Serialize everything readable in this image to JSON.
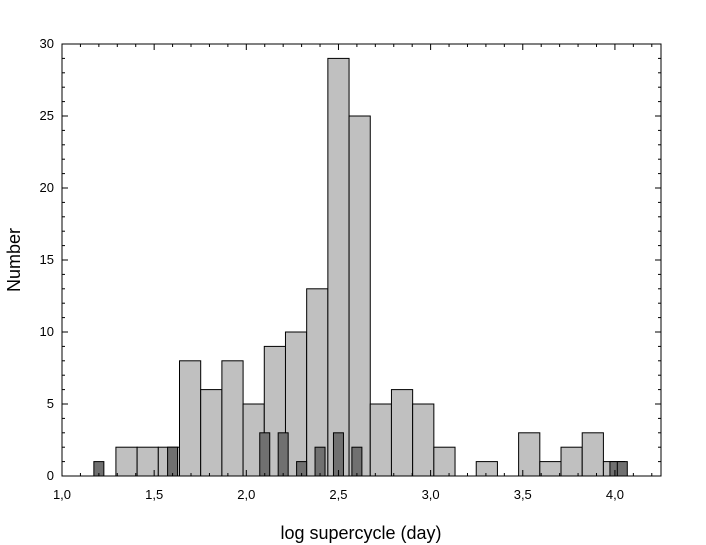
{
  "chart_data": {
    "type": "bar",
    "xlabel": "log supercycle (day)",
    "ylabel": "Number",
    "xlim": [
      1.0,
      4.25
    ],
    "ylim": [
      0,
      30
    ],
    "x_ticks": [
      1.0,
      1.5,
      2.0,
      2.5,
      3.0,
      3.5,
      4.0
    ],
    "x_tick_labels": [
      "1,0",
      "1,5",
      "2,0",
      "2,5",
      "3,0",
      "3,5",
      "4,0"
    ],
    "y_ticks": [
      0,
      5,
      10,
      15,
      20,
      25,
      30
    ],
    "y_tick_labels": [
      "0",
      "5",
      "10",
      "15",
      "20",
      "25",
      "30"
    ],
    "grid": false,
    "bin_width": 0.115,
    "series": [
      {
        "color": "#c0c0c0",
        "x": [
          1.35,
          1.465,
          1.58,
          1.695,
          1.81,
          1.925,
          2.04,
          2.155,
          2.27,
          2.385,
          2.5,
          2.615,
          2.73,
          2.845,
          2.96,
          3.075,
          3.305,
          3.535,
          3.65,
          3.765,
          3.88,
          3.995
        ],
        "values": [
          2,
          2,
          2,
          8,
          6,
          8,
          5,
          9,
          10,
          13,
          29,
          25,
          5,
          6,
          5,
          2,
          1,
          3,
          1,
          2,
          3,
          1
        ]
      },
      {
        "color": "#707070",
        "x": [
          1.2,
          1.6,
          2.1,
          2.2,
          2.3,
          2.4,
          2.5,
          2.6,
          4.0,
          4.04
        ],
        "values": [
          1,
          2,
          3,
          3,
          1,
          2,
          3,
          2,
          1,
          1
        ]
      }
    ]
  }
}
